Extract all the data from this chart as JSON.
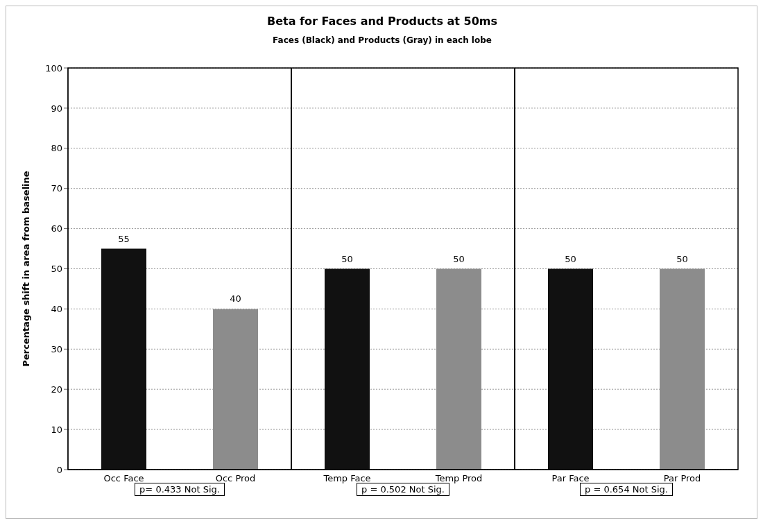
{
  "chart_data": {
    "type": "bar",
    "title": "Beta for Faces and Products at 50ms",
    "subtitle": "Faces (Black) and Products (Gray) in each lobe",
    "ylabel": "Percentage shift in area from baseline",
    "categories": [
      "Occ Face",
      "Occ Prod",
      "Temp Face",
      "Temp Prod",
      "Par Face",
      "Par Prod"
    ],
    "values": [
      55,
      40,
      50,
      50,
      50,
      50
    ],
    "colors": [
      "#111111",
      "#8c8c8c",
      "#111111",
      "#8c8c8c",
      "#111111",
      "#8c8c8c"
    ],
    "ylim": [
      0,
      100
    ],
    "yticks": [
      0,
      10,
      20,
      30,
      40,
      50,
      60,
      70,
      80,
      90,
      100
    ],
    "grid": "y",
    "data_labels": true,
    "annotations": [
      "p= 0.433 Not Sig.",
      "p = 0.502 Not Sig.",
      "p = 0.654 Not Sig."
    ]
  }
}
